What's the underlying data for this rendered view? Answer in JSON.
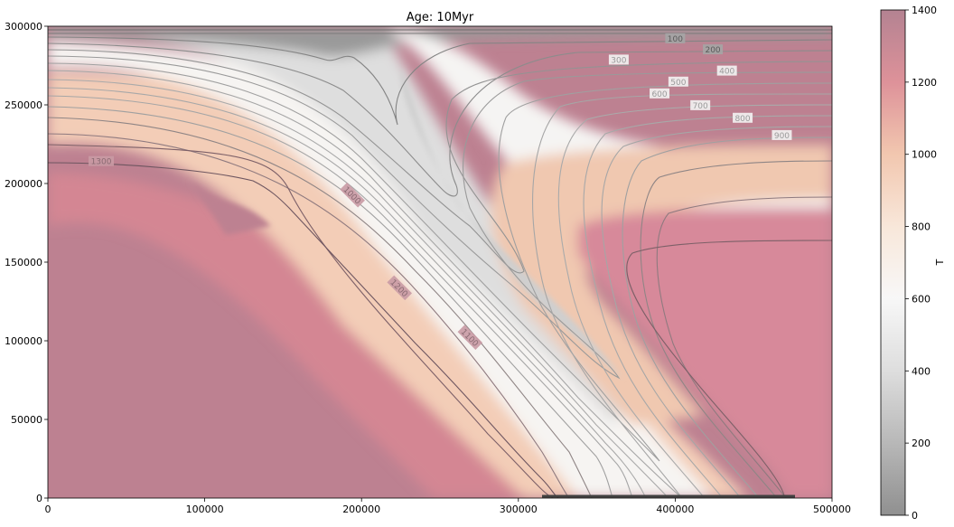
{
  "chart_data": {
    "type": "heatmap",
    "title": "Age: 10Myr",
    "xlabel": "",
    "ylabel": "",
    "xlim": [
      0,
      500000
    ],
    "ylim": [
      0,
      300000
    ],
    "x_ticks": [
      {
        "value": 0,
        "label": "0"
      },
      {
        "value": 100000,
        "label": "100000"
      },
      {
        "value": 200000,
        "label": "200000"
      },
      {
        "value": 300000,
        "label": "300000"
      },
      {
        "value": 400000,
        "label": "400000"
      },
      {
        "value": 500000,
        "label": "500000"
      }
    ],
    "y_ticks": [
      {
        "value": 0,
        "label": "0"
      },
      {
        "value": 50000,
        "label": "50000"
      },
      {
        "value": 100000,
        "label": "100000"
      },
      {
        "value": 150000,
        "label": "150000"
      },
      {
        "value": 200000,
        "label": "200000"
      },
      {
        "value": 250000,
        "label": "250000"
      },
      {
        "value": 300000,
        "label": "300000"
      }
    ],
    "colorbar": {
      "label": "T",
      "range": [
        0,
        1400
      ],
      "ticks": [
        {
          "value": 0,
          "label": "0"
        },
        {
          "value": 200,
          "label": "200"
        },
        {
          "value": 400,
          "label": "400"
        },
        {
          "value": 600,
          "label": "600"
        },
        {
          "value": 800,
          "label": "800"
        },
        {
          "value": 1000,
          "label": "1000"
        },
        {
          "value": 1200,
          "label": "1200"
        },
        {
          "value": 1400,
          "label": "1400"
        }
      ],
      "colors": [
        "#8c8c8c",
        "#c8c8c8",
        "#f7f7f7",
        "#f7d2bb",
        "#dc8c94",
        "#b07c8c"
      ]
    },
    "contour_levels": [
      100,
      200,
      300,
      400,
      500,
      600,
      700,
      800,
      900,
      1000,
      1100,
      1200,
      1300
    ],
    "contour_labels": [
      {
        "value": 100,
        "label": "100",
        "x": 400000,
        "y": 292000
      },
      {
        "value": 200,
        "label": "200",
        "x": 424000,
        "y": 285000
      },
      {
        "value": 300,
        "label": "300",
        "x": 364000,
        "y": 278500
      },
      {
        "value": 400,
        "label": "400",
        "x": 433000,
        "y": 271500
      },
      {
        "value": 500,
        "label": "500",
        "x": 402000,
        "y": 264500
      },
      {
        "value": 600,
        "label": "600",
        "x": 390000,
        "y": 257000
      },
      {
        "value": 700,
        "label": "700",
        "x": 416000,
        "y": 249500
      },
      {
        "value": 800,
        "label": "800",
        "x": 443000,
        "y": 241500
      },
      {
        "value": 900,
        "label": "900",
        "x": 468000,
        "y": 230500
      },
      {
        "value": 1000,
        "label": "1000",
        "x": 194000,
        "y": 192500
      },
      {
        "value": 1100,
        "label": "1100",
        "x": 269000,
        "y": 102000
      },
      {
        "value": 1200,
        "label": "1200",
        "x": 224000,
        "y": 133500
      },
      {
        "value": 1300,
        "label": "1300",
        "x": 34000,
        "y": 214000
      }
    ]
  }
}
